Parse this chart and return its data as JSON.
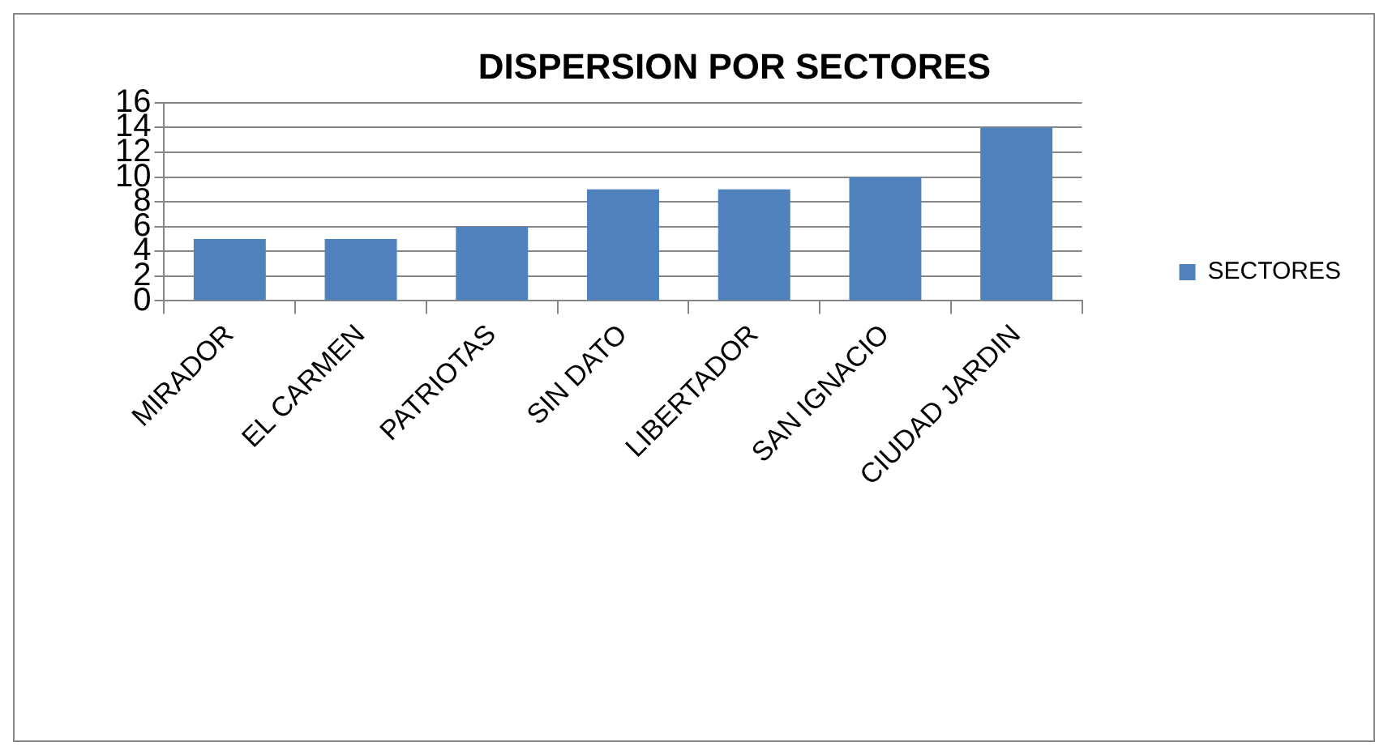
{
  "chart_data": {
    "type": "bar",
    "title": "DISPERSION POR SECTORES",
    "categories": [
      "MIRADOR",
      "EL CARMEN",
      "PATRIOTAS",
      "SIN DATO",
      "LIBERTADOR",
      "SAN IGNACIO",
      "CIUDAD JARDIN"
    ],
    "series": [
      {
        "name": "SECTORES",
        "color": "#4f81bd",
        "values": [
          5,
          5,
          6,
          9,
          9,
          10,
          14
        ]
      }
    ],
    "ylim": [
      0,
      16
    ],
    "yticks": [
      0,
      2,
      4,
      6,
      8,
      10,
      12,
      14,
      16
    ],
    "grid": "y",
    "legend": "right"
  }
}
